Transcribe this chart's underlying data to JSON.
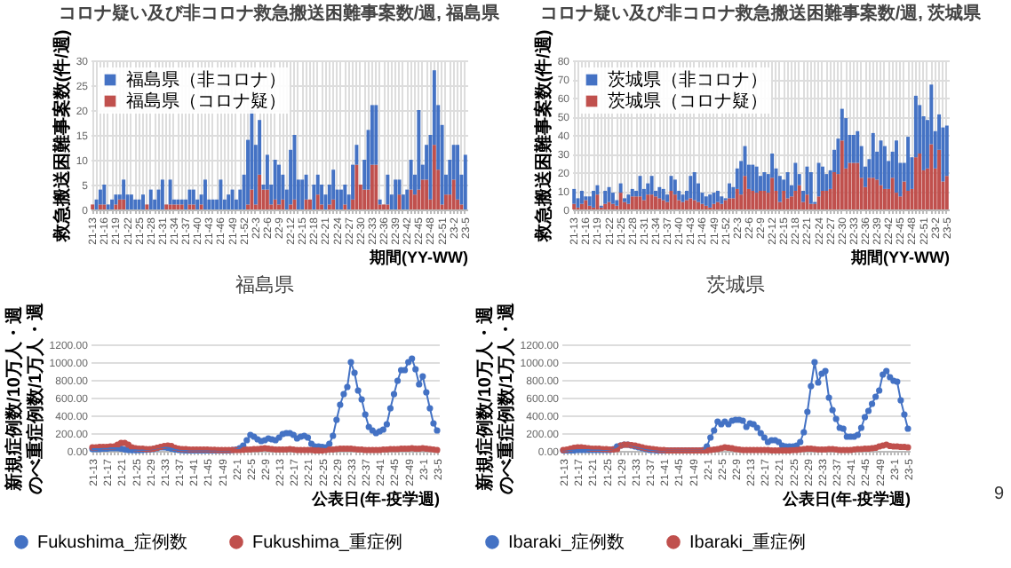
{
  "chart_data": [
    {
      "type": "bar",
      "stacked": true,
      "title": "コロナ疑い及び非コロナ救急搬送困難事案数/週, 福島県",
      "xlabel": "期間(YY-WW)",
      "ylabel": "救急搬送困難事案数(件/週)",
      "ylim": [
        0,
        30
      ],
      "yticks": [
        0,
        5,
        10,
        15,
        20,
        25,
        30
      ],
      "grid": true,
      "legend": "top left",
      "categories": [
        "21-13",
        null,
        null,
        "21-16",
        null,
        null,
        "21-19",
        null,
        null,
        "21-22",
        null,
        null,
        "21-25",
        null,
        null,
        "21-28",
        null,
        null,
        "21-31",
        null,
        null,
        "21-34",
        null,
        null,
        "21-37",
        null,
        null,
        "21-40",
        null,
        null,
        "21-43",
        null,
        null,
        "21-46",
        null,
        null,
        "21-49",
        null,
        null,
        "21-52",
        null,
        null,
        "22-3",
        null,
        null,
        "22-6",
        null,
        null,
        "22-9",
        null,
        null,
        "22-12",
        null,
        null,
        "22-15",
        null,
        null,
        "22-18",
        null,
        null,
        "22-21",
        null,
        null,
        "22-24",
        null,
        null,
        "22-27",
        null,
        null,
        "22-30",
        null,
        null,
        "22-33",
        null,
        null,
        "22-36",
        null,
        null,
        "22-39",
        null,
        null,
        "22-42",
        null,
        null,
        "22-45",
        null,
        null,
        "22-48",
        null,
        null,
        "22-51",
        null,
        null,
        "23-2",
        null,
        null,
        "23-5"
      ],
      "series": [
        {
          "name": "福島県（コロナ疑）",
          "color": "#c0504d",
          "values": [
            1,
            0,
            1,
            1,
            0,
            0,
            1,
            2,
            2,
            0,
            0,
            0,
            0,
            0,
            1,
            0,
            0,
            0,
            0,
            1,
            1,
            1,
            1,
            1,
            0,
            1,
            1,
            0,
            1,
            0,
            0,
            0,
            0,
            0,
            0,
            0,
            0,
            0,
            0,
            0,
            1,
            4,
            1,
            7,
            4,
            4,
            1,
            2,
            1,
            2,
            0,
            1,
            2,
            0,
            0,
            2,
            2,
            0,
            3,
            1,
            0,
            1,
            2,
            0,
            0,
            1,
            0,
            2,
            9,
            5,
            4,
            4,
            9,
            9,
            1,
            1,
            1,
            0,
            0,
            3,
            0,
            0,
            4,
            3,
            4,
            6,
            6,
            2,
            13,
            8,
            1,
            3,
            3,
            6,
            2,
            1,
            0
          ]
        },
        {
          "name": "福島県（非コロナ）",
          "color": "#4472c4",
          "values": [
            0,
            2,
            3,
            4,
            1,
            2,
            2,
            1,
            4,
            3,
            3,
            2,
            2,
            3,
            0,
            4,
            2,
            4,
            6,
            0,
            5,
            1,
            1,
            1,
            2,
            3,
            3,
            2,
            2,
            6,
            2,
            2,
            2,
            6,
            2,
            3,
            4,
            2,
            4,
            7,
            13,
            16,
            12,
            11,
            1,
            7,
            4,
            8,
            8,
            5,
            4,
            11,
            13,
            6,
            6,
            5,
            0,
            5,
            4,
            4,
            3,
            4,
            6,
            4,
            4,
            4,
            3,
            7,
            4,
            0,
            6,
            12,
            12,
            12,
            1,
            0,
            6,
            3,
            6,
            3,
            3,
            4,
            6,
            4,
            16,
            3,
            7,
            13,
            15,
            13,
            16,
            4,
            7,
            7,
            11,
            6,
            11
          ]
        }
      ]
    },
    {
      "type": "bar",
      "stacked": true,
      "title": "コロナ疑い及び非コロナ救急搬送困難事案数/週, 茨城県",
      "xlabel": "期間(YY-WW)",
      "ylabel": "救急搬送困難事案数(件/週)",
      "ylim": [
        0,
        80
      ],
      "yticks": [
        0,
        10,
        20,
        30,
        40,
        50,
        60,
        70,
        80
      ],
      "grid": true,
      "legend": "top left",
      "categories": [
        "21-13",
        null,
        null,
        "21-16",
        null,
        null,
        "21-19",
        null,
        null,
        "21-22",
        null,
        null,
        "21-25",
        null,
        null,
        "21-28",
        null,
        null,
        "21-31",
        null,
        null,
        "21-34",
        null,
        null,
        "21-37",
        null,
        null,
        "21-40",
        null,
        null,
        "21-43",
        null,
        null,
        "21-46",
        null,
        null,
        "21-49",
        null,
        null,
        "21-52",
        null,
        null,
        "22-3",
        null,
        null,
        "22-6",
        null,
        null,
        "22-9",
        null,
        null,
        "22-12",
        null,
        null,
        "22-15",
        null,
        null,
        "22-18",
        null,
        null,
        "22-21",
        null,
        null,
        "22-24",
        null,
        null,
        "22-27",
        null,
        null,
        "22-30",
        null,
        null,
        "22-33",
        null,
        null,
        "22-36",
        null,
        null,
        "22-39",
        null,
        null,
        "22-42",
        null,
        null,
        "22-45",
        null,
        null,
        "22-48",
        null,
        null,
        "22-51",
        null,
        null,
        "23-2",
        null,
        null,
        "23-5"
      ],
      "series": [
        {
          "name": "茨城県（コロナ疑）",
          "color": "#c0504d",
          "values": [
            3,
            1,
            3,
            5,
            2,
            1,
            8,
            1,
            3,
            4,
            3,
            2,
            9,
            4,
            3,
            7,
            7,
            7,
            5,
            8,
            8,
            7,
            6,
            5,
            4,
            10,
            8,
            5,
            4,
            5,
            6,
            5,
            4,
            3,
            2,
            1,
            3,
            4,
            3,
            5,
            6,
            6,
            11,
            8,
            18,
            11,
            10,
            9,
            10,
            10,
            9,
            17,
            10,
            4,
            10,
            6,
            7,
            10,
            13,
            4,
            8,
            3,
            3,
            7,
            10,
            10,
            11,
            20,
            19,
            37,
            22,
            25,
            25,
            25,
            17,
            12,
            17,
            17,
            16,
            13,
            11,
            11,
            17,
            9,
            7,
            15,
            10,
            11,
            28,
            30,
            21,
            22,
            35,
            22,
            32,
            15,
            18
          ]
        },
        {
          "name": "茨城県（非コロナ）",
          "color": "#4472c4",
          "values": [
            8,
            5,
            7,
            2,
            5,
            9,
            5,
            1,
            7,
            8,
            6,
            3,
            5,
            2,
            5,
            4,
            3,
            11,
            6,
            6,
            10,
            3,
            6,
            6,
            4,
            8,
            8,
            5,
            4,
            5,
            12,
            15,
            10,
            6,
            5,
            7,
            6,
            6,
            4,
            1,
            8,
            6,
            11,
            18,
            16,
            13,
            14,
            14,
            8,
            10,
            10,
            13,
            12,
            14,
            6,
            14,
            6,
            15,
            6,
            6,
            15,
            17,
            1,
            18,
            13,
            9,
            10,
            12,
            19,
            17,
            27,
            15,
            15,
            17,
            17,
            11,
            10,
            24,
            15,
            24,
            23,
            15,
            14,
            28,
            18,
            10,
            29,
            17,
            33,
            26,
            29,
            26,
            32,
            20,
            19,
            29,
            27
          ]
        }
      ]
    },
    {
      "type": "line",
      "title": "福島県",
      "xlabel": "公表日(年-疫学週)",
      "ylabel": "新規症例数/10万人・週のべ重症例数/1万人・週",
      "ylim": [
        0,
        1200
      ],
      "yticks": [
        {
          "value": 0,
          "label": "0.00"
        },
        {
          "value": 200,
          "label": "200.00"
        },
        {
          "value": 400,
          "label": "400.00"
        },
        {
          "value": 600,
          "label": "600.00"
        },
        {
          "value": 800,
          "label": "800.00"
        },
        {
          "value": 1000,
          "label": "1000.00"
        },
        {
          "value": 1200,
          "label": "1200.00"
        }
      ],
      "grid": "y",
      "legend": "bottom",
      "marker": "circle",
      "categories": [
        "21-13",
        null,
        null,
        null,
        "21-17",
        null,
        null,
        null,
        "21-21",
        null,
        null,
        null,
        "21-25",
        null,
        null,
        null,
        "21-29",
        null,
        null,
        null,
        "21-33",
        null,
        null,
        null,
        "21-37",
        null,
        null,
        null,
        "21-41",
        null,
        null,
        null,
        "21-45",
        null,
        null,
        null,
        "21-49",
        null,
        null,
        null,
        "22-1",
        null,
        null,
        null,
        "22-5",
        null,
        null,
        null,
        "22-9",
        null,
        null,
        null,
        "22-13",
        null,
        null,
        null,
        "22-17",
        null,
        null,
        null,
        "22-21",
        null,
        null,
        null,
        "22-25",
        null,
        null,
        null,
        "22-29",
        null,
        null,
        null,
        "22-33",
        null,
        null,
        null,
        "22-37",
        null,
        null,
        null,
        "22-41",
        null,
        null,
        null,
        "22-45",
        null,
        null,
        null,
        "22-49",
        null,
        null,
        null,
        "23-1",
        null,
        null,
        null,
        "23-5"
      ],
      "series": [
        {
          "name": "Fukushima_症例数",
          "color": "#4472c4",
          "values": [
            20,
            20,
            20,
            25,
            25,
            30,
            30,
            30,
            25,
            15,
            10,
            8,
            8,
            8,
            10,
            12,
            15,
            20,
            30,
            40,
            40,
            35,
            25,
            15,
            10,
            8,
            5,
            5,
            5,
            5,
            5,
            5,
            5,
            5,
            5,
            5,
            5,
            5,
            5,
            10,
            15,
            30,
            60,
            120,
            180,
            160,
            130,
            110,
            120,
            140,
            130,
            120,
            150,
            190,
            200,
            200,
            180,
            140,
            160,
            170,
            150,
            80,
            50,
            50,
            45,
            40,
            80,
            170,
            350,
            520,
            640,
            720,
            1000,
            880,
            680,
            580,
            410,
            270,
            230,
            200,
            220,
            240,
            300,
            480,
            640,
            790,
            910,
            910,
            1000,
            1040,
            920,
            750,
            840,
            660,
            480,
            310,
            230
          ]
        },
        {
          "name": "Fukushima_重症例",
          "color": "#c0504d",
          "values": [
            40,
            40,
            45,
            45,
            45,
            50,
            50,
            70,
            90,
            90,
            70,
            40,
            30,
            25,
            25,
            20,
            20,
            25,
            35,
            45,
            55,
            60,
            55,
            35,
            25,
            20,
            20,
            15,
            15,
            15,
            15,
            15,
            15,
            12,
            12,
            10,
            10,
            10,
            10,
            10,
            10,
            10,
            12,
            15,
            15,
            20,
            20,
            25,
            30,
            25,
            20,
            15,
            15,
            15,
            15,
            20,
            15,
            10,
            10,
            10,
            10,
            10,
            5,
            5,
            5,
            10,
            15,
            15,
            20,
            25,
            25,
            25,
            25,
            20,
            15,
            15,
            10,
            10,
            10,
            10,
            10,
            15,
            15,
            20,
            20,
            20,
            25,
            25,
            25,
            30,
            25,
            25,
            30,
            25,
            20,
            15,
            10
          ]
        }
      ]
    },
    {
      "type": "line",
      "title": "茨城県",
      "xlabel": "公表日(年-疫学週)",
      "ylabel": "新規症例数/10万人・週のべ重症例数/1万人・週",
      "ylim": [
        0,
        1200
      ],
      "yticks": [
        {
          "value": 0,
          "label": "0.00"
        },
        {
          "value": 200,
          "label": "200.00"
        },
        {
          "value": 400,
          "label": "400.00"
        },
        {
          "value": 600,
          "label": "600.00"
        },
        {
          "value": 800,
          "label": "800.00"
        },
        {
          "value": 1000,
          "label": "1000.00"
        },
        {
          "value": 1200,
          "label": "1200.00"
        }
      ],
      "grid": "y",
      "legend": "bottom",
      "marker": "circle",
      "annotations": [
        "9"
      ],
      "categories": [
        "21-13",
        null,
        null,
        null,
        "21-17",
        null,
        null,
        null,
        "21-21",
        null,
        null,
        null,
        "21-25",
        null,
        null,
        null,
        "21-29",
        null,
        null,
        null,
        "21-33",
        null,
        null,
        null,
        "21-37",
        null,
        null,
        null,
        "21-41",
        null,
        null,
        null,
        "21-45",
        null,
        null,
        null,
        "21-49",
        null,
        null,
        null,
        "22-1",
        null,
        null,
        null,
        "22-5",
        null,
        null,
        null,
        "22-9",
        null,
        null,
        null,
        "22-13",
        null,
        null,
        null,
        "22-17",
        null,
        null,
        null,
        "22-21",
        null,
        null,
        null,
        "22-25",
        null,
        null,
        null,
        "22-29",
        null,
        null,
        null,
        "22-33",
        null,
        null,
        null,
        "22-37",
        null,
        null,
        null,
        "22-41",
        null,
        null,
        null,
        "22-45",
        null,
        null,
        null,
        "22-49",
        null,
        null,
        null,
        "23-1",
        null,
        null,
        null,
        "23-5"
      ],
      "series": [
        {
          "name": "Ibaraki_症例数",
          "color": "#4472c4",
          "values": [
            5,
            5,
            5,
            5,
            10,
            10,
            10,
            10,
            10,
            10,
            10,
            10,
            10,
            10,
            20,
            50,
            60,
            70,
            70,
            60,
            50,
            40,
            30,
            20,
            10,
            10,
            5,
            5,
            5,
            5,
            5,
            5,
            5,
            5,
            5,
            5,
            5,
            5,
            5,
            10,
            50,
            150,
            230,
            330,
            300,
            330,
            300,
            340,
            350,
            350,
            340,
            270,
            310,
            300,
            260,
            200,
            150,
            100,
            120,
            120,
            100,
            60,
            50,
            50,
            50,
            60,
            100,
            210,
            440,
            730,
            1000,
            770,
            870,
            900,
            600,
            460,
            360,
            260,
            250,
            160,
            160,
            160,
            180,
            260,
            380,
            450,
            530,
            610,
            680,
            860,
            900,
            830,
            790,
            780,
            570,
            410,
            250
          ]
        },
        {
          "name": "Ibaraki_重症例",
          "color": "#c0504d",
          "values": [
            10,
            15,
            25,
            35,
            40,
            40,
            35,
            30,
            25,
            25,
            25,
            20,
            20,
            15,
            15,
            20,
            60,
            70,
            70,
            65,
            60,
            50,
            40,
            30,
            25,
            20,
            15,
            10,
            10,
            5,
            5,
            5,
            5,
            5,
            5,
            5,
            5,
            5,
            5,
            5,
            5,
            10,
            15,
            20,
            30,
            40,
            35,
            30,
            20,
            15,
            10,
            10,
            10,
            10,
            10,
            10,
            10,
            10,
            5,
            5,
            5,
            5,
            5,
            5,
            10,
            10,
            15,
            20,
            25,
            25,
            20,
            15,
            15,
            15,
            20,
            20,
            15,
            10,
            10,
            10,
            10,
            15,
            20,
            20,
            25,
            25,
            30,
            35,
            50,
            60,
            70,
            55,
            50,
            50,
            45,
            45,
            40
          ]
        }
      ]
    }
  ]
}
